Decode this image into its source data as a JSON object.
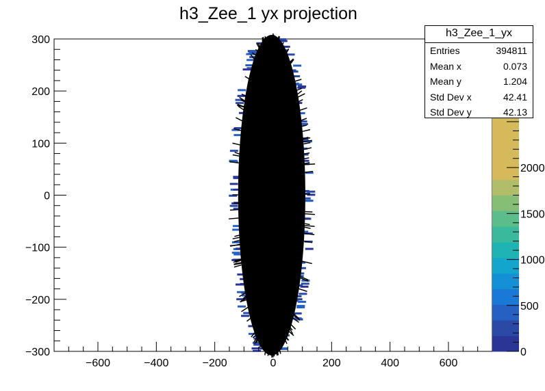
{
  "chart_data": {
    "type": "heatmap",
    "title": "h3_Zee_1 yx projection",
    "xlabel": "",
    "ylabel": "",
    "xlim": [
      -750,
      750
    ],
    "ylim": [
      -300,
      300
    ],
    "x_ticks": [
      -600,
      -400,
      -200,
      0,
      200,
      400,
      600
    ],
    "y_ticks": [
      -300,
      -200,
      -100,
      0,
      100,
      200,
      300
    ],
    "z_ticks": [
      0,
      500,
      1000,
      1500,
      2000,
      2500,
      3000
    ],
    "z_tick_labels": [
      "0",
      "500",
      "1000",
      "1500",
      "2000",
      "",
      ""
    ],
    "zlim": [
      0,
      3400
    ],
    "colormap": [
      "#2a3696",
      "#2a4aa6",
      "#2560c2",
      "#1a78d6",
      "#1490d6",
      "#13a6cc",
      "#1fb3b3",
      "#3bb99c",
      "#5bbd8b",
      "#87be76",
      "#b1bd68",
      "#d6b95a"
    ],
    "distribution": {
      "shape": "gaussian core, saturated",
      "core_x_range": [
        -120,
        110
      ],
      "core_y_range": [
        -300,
        300
      ]
    },
    "stats": {
      "title": "h3_Zee_1_yx",
      "rows": [
        {
          "label": "Entries",
          "value": "394811"
        },
        {
          "label": "Mean x",
          "value": "0.073"
        },
        {
          "label": "Mean y",
          "value": "1.204"
        },
        {
          "label": "Std Dev x",
          "value": "42.41"
        },
        {
          "label": "Std Dev y",
          "value": "42.13"
        }
      ]
    }
  }
}
